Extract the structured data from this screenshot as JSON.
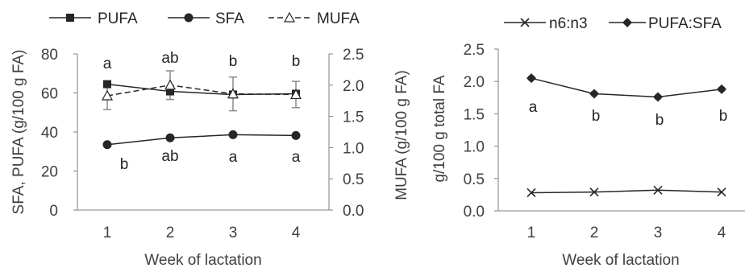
{
  "chart_data": [
    {
      "type": "line",
      "x": [
        1,
        2,
        3,
        4
      ],
      "xlabel": "Week of lactation",
      "ylabel": "SFA, PUFA (g/100 g FA)",
      "ylabel_right": "MUFA (g/100 g FA)",
      "ylim": [
        0,
        80
      ],
      "y_ticks": [
        "0",
        "20",
        "40",
        "60",
        "80"
      ],
      "ylim_right": [
        0,
        2.5
      ],
      "y_ticks_right": [
        "0.0",
        "0.5",
        "1.0",
        "1.5",
        "2.0",
        "2.5"
      ],
      "x_ticks": [
        "1",
        "2",
        "3",
        "4"
      ],
      "legend_position": "top",
      "series": [
        {
          "name": "PUFA",
          "axis": "left",
          "marker": "square",
          "style": "solid",
          "values": [
            64.5,
            60.8,
            59.2,
            59.6
          ],
          "annotations": [
            "a",
            "ab",
            "b",
            "b"
          ]
        },
        {
          "name": "SFA",
          "axis": "left",
          "marker": "circle",
          "style": "solid",
          "values": [
            33.5,
            37.0,
            38.6,
            38.2
          ],
          "annotations": [
            "b",
            "ab",
            "a",
            "a"
          ]
        },
        {
          "name": "MUFA",
          "axis": "right",
          "marker": "open-triangle",
          "style": "dashed",
          "values": [
            1.83,
            2.0,
            1.86,
            1.85
          ],
          "errors": [
            0.22,
            0.23,
            0.27,
            0.21
          ]
        }
      ],
      "grid": false
    },
    {
      "type": "line",
      "x": [
        1,
        2,
        3,
        4
      ],
      "xlabel": "Week of lactation",
      "ylabel": "g/100 g total FA",
      "ylim": [
        0,
        2.5
      ],
      "y_ticks": [
        "0.0",
        "0.5",
        "1.0",
        "1.5",
        "2.0",
        "2.5"
      ],
      "x_ticks": [
        "1",
        "2",
        "3",
        "4"
      ],
      "legend_position": "top",
      "series": [
        {
          "name": "n6:n3",
          "marker": "x",
          "style": "solid",
          "values": [
            0.28,
            0.29,
            0.32,
            0.29
          ]
        },
        {
          "name": "PUFA:SFA",
          "marker": "diamond",
          "style": "solid",
          "values": [
            2.05,
            1.81,
            1.76,
            1.88
          ],
          "annotations": [
            "a",
            "b",
            "b",
            "b"
          ]
        }
      ],
      "grid": false
    }
  ]
}
